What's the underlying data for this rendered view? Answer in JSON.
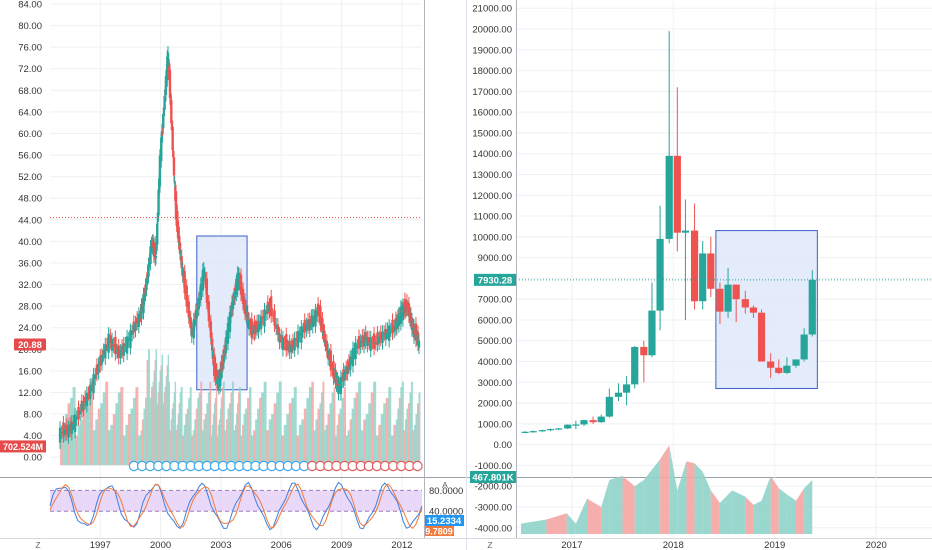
{
  "chart_data": [
    {
      "type": "candlestick",
      "yaxis": {
        "range": [
          -2,
          84
        ],
        "ticks": [
          "84.00",
          "80.00",
          "76.00",
          "72.00",
          "68.00",
          "64.00",
          "60.00",
          "56.00",
          "52.00",
          "48.00",
          "44.00",
          "40.00",
          "36.00",
          "32.00",
          "28.00",
          "24.00",
          "20.00",
          "16.00",
          "12.00",
          "8.00",
          "4.00",
          "0.00"
        ],
        "tick_values": [
          84,
          80,
          76,
          72,
          68,
          64,
          60,
          56,
          52,
          48,
          44,
          40,
          36,
          32,
          28,
          24,
          20,
          16,
          12,
          8,
          4,
          0
        ]
      },
      "xaxis": {
        "range": [
          1994.5,
          2013.0
        ],
        "ticks": [
          "1997",
          "2000",
          "2003",
          "2006",
          "2009",
          "2012"
        ],
        "tick_values": [
          1997,
          2000,
          2003,
          2006,
          2009,
          2012
        ]
      },
      "price_series": [
        [
          1995.0,
          4.5
        ],
        [
          1995.5,
          5
        ],
        [
          1996.0,
          8
        ],
        [
          1996.5,
          12
        ],
        [
          1997.0,
          17
        ],
        [
          1997.5,
          22
        ],
        [
          1998.0,
          19
        ],
        [
          1998.5,
          22
        ],
        [
          1999.0,
          26
        ],
        [
          1999.3,
          31
        ],
        [
          1999.6,
          40
        ],
        [
          1999.8,
          37
        ],
        [
          2000.0,
          55
        ],
        [
          2000.2,
          65
        ],
        [
          2000.4,
          75
        ],
        [
          2000.6,
          60
        ],
        [
          2000.8,
          45
        ],
        [
          2001.0,
          38
        ],
        [
          2001.3,
          30
        ],
        [
          2001.6,
          23
        ],
        [
          2001.9,
          28
        ],
        [
          2002.2,
          35
        ],
        [
          2002.5,
          24
        ],
        [
          2002.7,
          16
        ],
        [
          2002.9,
          14
        ],
        [
          2003.1,
          17
        ],
        [
          2003.4,
          24
        ],
        [
          2003.7,
          30
        ],
        [
          2003.9,
          34
        ],
        [
          2004.2,
          28
        ],
        [
          2004.6,
          23
        ],
        [
          2005.0,
          25
        ],
        [
          2005.5,
          28
        ],
        [
          2006.0,
          22
        ],
        [
          2006.5,
          20
        ],
        [
          2007.0,
          23
        ],
        [
          2007.5,
          25
        ],
        [
          2007.9,
          27
        ],
        [
          2008.2,
          22
        ],
        [
          2008.6,
          16
        ],
        [
          2008.9,
          13
        ],
        [
          2009.3,
          16
        ],
        [
          2009.7,
          20
        ],
        [
          2010.2,
          22
        ],
        [
          2010.7,
          21
        ],
        [
          2011.2,
          23
        ],
        [
          2011.7,
          24
        ],
        [
          2012.0,
          27
        ],
        [
          2012.3,
          28
        ],
        [
          2012.6,
          24
        ],
        [
          2012.9,
          21
        ]
      ],
      "last_price": "20.88",
      "resistance_level": 44.4,
      "highlight_box": {
        "x": [
          2001.8,
          2004.3
        ],
        "y": [
          12.5,
          41
        ]
      },
      "volume_label": "702.524M",
      "oscillator": {
        "ylim": [
          0,
          100
        ],
        "levels": [
          "80.0000",
          "40.0000"
        ],
        "level_values": [
          80,
          40
        ],
        "value_label": "15.2334",
        "value2_label": "9.7809"
      },
      "axis_corner_label": "Z",
      "axis_auto_label": "A"
    },
    {
      "type": "candlestick",
      "yaxis": {
        "range": [
          -4300,
          21300
        ],
        "ticks": [
          "21000.00",
          "20000.00",
          "19000.00",
          "18000.00",
          "17000.00",
          "16000.00",
          "15000.00",
          "14000.00",
          "13000.00",
          "12000.00",
          "11000.00",
          "10000.00",
          "9000.00",
          "8000.00",
          "7000.00",
          "6000.00",
          "5000.00",
          "4000.00",
          "3000.00",
          "2000.00",
          "1000.00",
          "0.00",
          "-1000.00",
          "-2000.00",
          "-3000.00",
          "-4000.00"
        ],
        "tick_values": [
          21000,
          20000,
          19000,
          18000,
          17000,
          16000,
          15000,
          14000,
          13000,
          12000,
          11000,
          10000,
          9000,
          8000,
          7000,
          6000,
          5000,
          4000,
          3000,
          2000,
          1000,
          0,
          -1000,
          -2000,
          -3000,
          -4000
        ]
      },
      "xaxis": {
        "range": [
          2016.45,
          2020.55
        ],
        "ticks": [
          "2017",
          "2018",
          "2019",
          "2020"
        ],
        "tick_values": [
          2017,
          2018,
          2019,
          2020
        ]
      },
      "candles": [
        {
          "t": 2016.54,
          "o": 600,
          "h": 650,
          "l": 550,
          "c": 620
        },
        {
          "t": 2016.62,
          "o": 620,
          "h": 680,
          "l": 580,
          "c": 650
        },
        {
          "t": 2016.71,
          "o": 650,
          "h": 720,
          "l": 600,
          "c": 700
        },
        {
          "t": 2016.79,
          "o": 700,
          "h": 780,
          "l": 650,
          "c": 750
        },
        {
          "t": 2016.87,
          "o": 750,
          "h": 800,
          "l": 700,
          "c": 780
        },
        {
          "t": 2016.96,
          "o": 780,
          "h": 980,
          "l": 750,
          "c": 960
        },
        {
          "t": 2017.04,
          "o": 960,
          "h": 1150,
          "l": 750,
          "c": 970
        },
        {
          "t": 2017.12,
          "o": 970,
          "h": 1200,
          "l": 900,
          "c": 1180
        },
        {
          "t": 2017.21,
          "o": 1180,
          "h": 1350,
          "l": 1000,
          "c": 1080
        },
        {
          "t": 2017.29,
          "o": 1080,
          "h": 1450,
          "l": 1050,
          "c": 1350
        },
        {
          "t": 2017.37,
          "o": 1350,
          "h": 2700,
          "l": 1300,
          "c": 2300
        },
        {
          "t": 2017.46,
          "o": 2300,
          "h": 2950,
          "l": 2100,
          "c": 2500
        },
        {
          "t": 2017.54,
          "o": 2500,
          "h": 3300,
          "l": 1900,
          "c": 2900
        },
        {
          "t": 2017.62,
          "o": 2900,
          "h": 4750,
          "l": 2700,
          "c": 4700
        },
        {
          "t": 2017.71,
          "o": 4700,
          "h": 5000,
          "l": 3000,
          "c": 4300
        },
        {
          "t": 2017.79,
          "o": 4300,
          "h": 7800,
          "l": 4200,
          "c": 6450
        },
        {
          "t": 2017.87,
          "o": 6450,
          "h": 11500,
          "l": 5500,
          "c": 9900
        },
        {
          "t": 2017.96,
          "o": 9900,
          "h": 19900,
          "l": 9700,
          "c": 13900
        },
        {
          "t": 2018.04,
          "o": 13900,
          "h": 17200,
          "l": 9300,
          "c": 10200
        },
        {
          "t": 2018.12,
          "o": 10200,
          "h": 11800,
          "l": 6000,
          "c": 10300
        },
        {
          "t": 2018.21,
          "o": 10300,
          "h": 11600,
          "l": 6500,
          "c": 6900
        },
        {
          "t": 2018.29,
          "o": 6900,
          "h": 9800,
          "l": 6500,
          "c": 9200
        },
        {
          "t": 2018.37,
          "o": 9200,
          "h": 10000,
          "l": 7100,
          "c": 7500
        },
        {
          "t": 2018.46,
          "o": 7500,
          "h": 7800,
          "l": 5800,
          "c": 6400
        },
        {
          "t": 2018.54,
          "o": 6400,
          "h": 8500,
          "l": 6100,
          "c": 7700
        },
        {
          "t": 2018.62,
          "o": 7700,
          "h": 7700,
          "l": 5900,
          "c": 7000
        },
        {
          "t": 2018.71,
          "o": 7000,
          "h": 7400,
          "l": 6300,
          "c": 6600
        },
        {
          "t": 2018.79,
          "o": 6600,
          "h": 6700,
          "l": 6100,
          "c": 6350
        },
        {
          "t": 2018.87,
          "o": 6350,
          "h": 6500,
          "l": 4000,
          "c": 4000
        },
        {
          "t": 2018.96,
          "o": 4000,
          "h": 4400,
          "l": 3200,
          "c": 3700
        },
        {
          "t": 2019.04,
          "o": 3700,
          "h": 4100,
          "l": 3400,
          "c": 3450
        },
        {
          "t": 2019.12,
          "o": 3450,
          "h": 4200,
          "l": 3400,
          "c": 3800
        },
        {
          "t": 2019.21,
          "o": 3800,
          "h": 4100,
          "l": 3700,
          "c": 4100
        },
        {
          "t": 2019.29,
          "o": 4100,
          "h": 5600,
          "l": 4000,
          "c": 5300
        },
        {
          "t": 2019.37,
          "o": 5300,
          "h": 8400,
          "l": 5200,
          "c": 7930
        }
      ],
      "volume": [
        [
          2016.5,
          -3800
        ],
        [
          2016.75,
          -3600
        ],
        [
          2016.95,
          -3300
        ],
        [
          2017.04,
          -3800
        ],
        [
          2017.15,
          -2600
        ],
        [
          2017.29,
          -3000
        ],
        [
          2017.37,
          -1700
        ],
        [
          2017.5,
          -1500
        ],
        [
          2017.62,
          -2000
        ],
        [
          2017.71,
          -1700
        ],
        [
          2017.87,
          -700
        ],
        [
          2017.96,
          -30
        ],
        [
          2018.04,
          -2200
        ],
        [
          2018.13,
          -800
        ],
        [
          2018.21,
          -900
        ],
        [
          2018.29,
          -1300
        ],
        [
          2018.37,
          -2200
        ],
        [
          2018.46,
          -2800
        ],
        [
          2018.58,
          -2200
        ],
        [
          2018.71,
          -2500
        ],
        [
          2018.79,
          -2900
        ],
        [
          2018.87,
          -2700
        ],
        [
          2018.96,
          -1500
        ],
        [
          2019.04,
          -2100
        ],
        [
          2019.12,
          -2400
        ],
        [
          2019.21,
          -2700
        ],
        [
          2019.29,
          -2100
        ],
        [
          2019.37,
          -1700
        ]
      ],
      "last_price": "7930.28",
      "last_price_value": 7930.28,
      "highlight_box": {
        "x": [
          2018.42,
          2019.42
        ],
        "y": [
          2700,
          10300
        ]
      },
      "volume_label": "467.801K",
      "axis_corner_label": "Z"
    }
  ],
  "colors": {
    "up": "#26a69a",
    "down": "#ef5350",
    "volume_up": "#8fd3c9",
    "volume_down": "#f4a5a3",
    "box_fill": "#dbe6fb",
    "box_stroke": "#3b5ec4",
    "resistance": "#e54b4b",
    "last_price_right": "#26a69a",
    "oscillator_band": "#e1c8f5",
    "oscillator_blue": "#3f7fe0",
    "oscillator_orange": "#f07a3c",
    "oscillator_value_bg": "#2196f3",
    "oscillator_value2_bg": "#f07a3c",
    "volume_label_bg": "#e54b4b",
    "volume_label_bg_right": "#26a69a"
  }
}
